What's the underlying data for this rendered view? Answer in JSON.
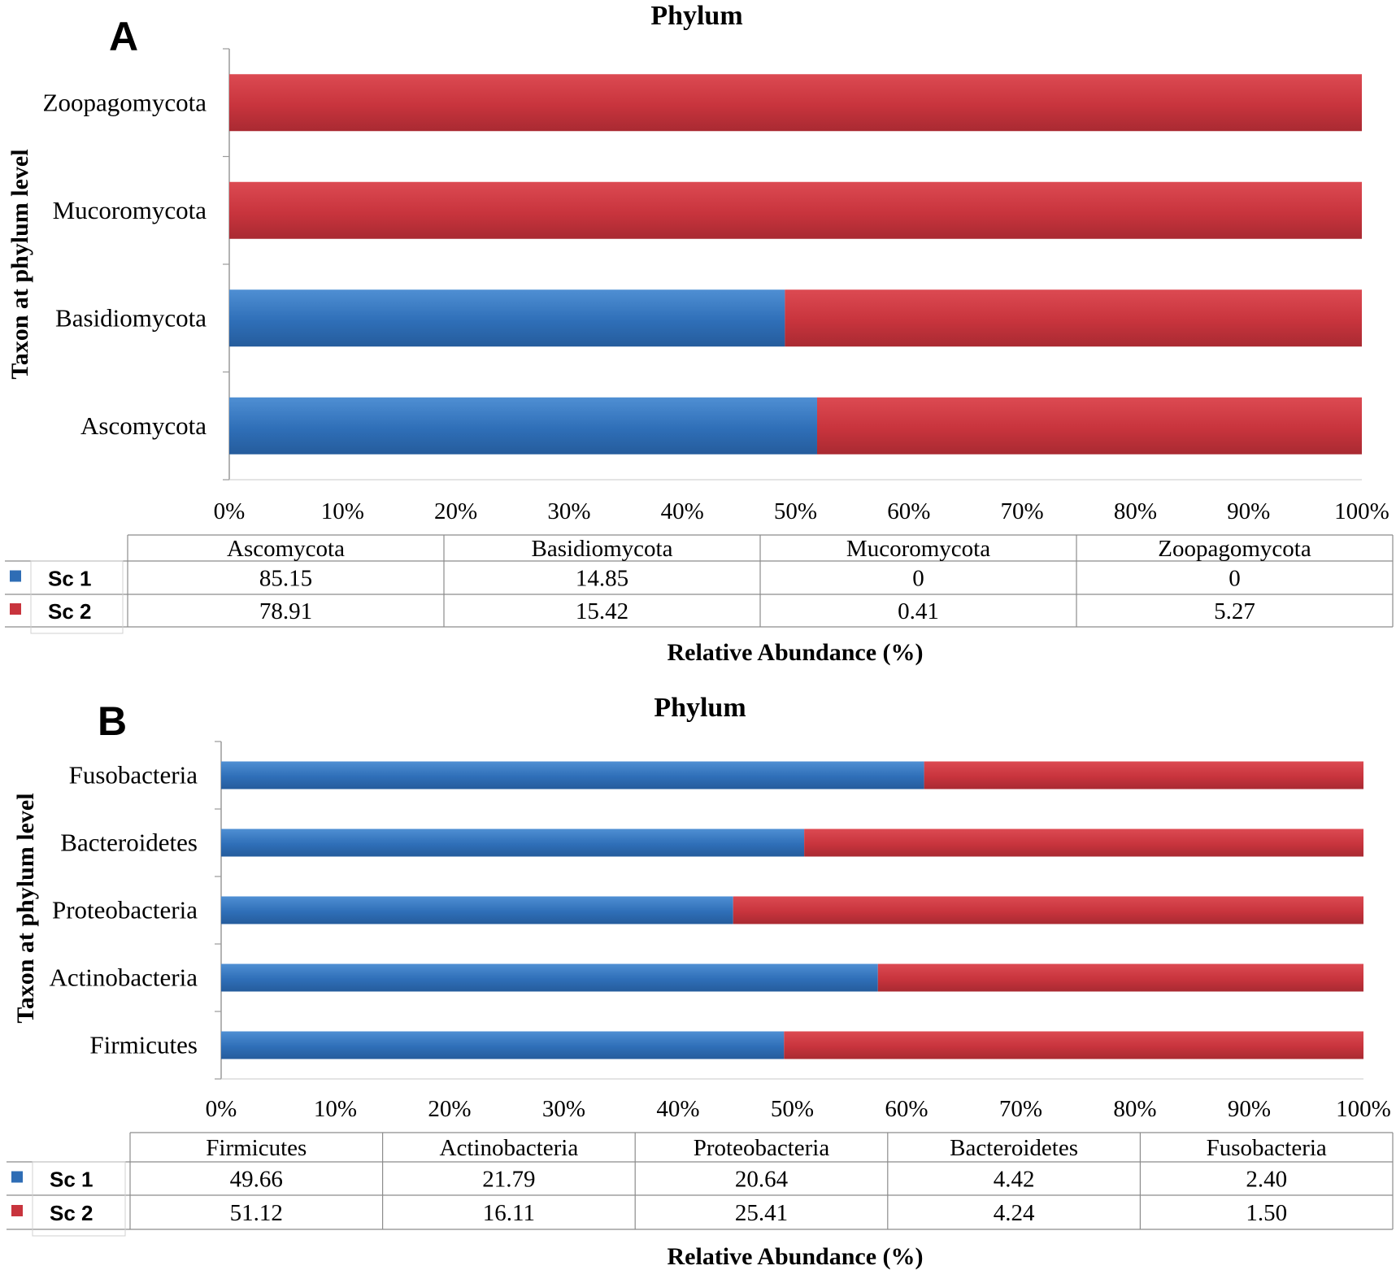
{
  "colors": {
    "sc1": "#2E6DB5",
    "sc1_light": "#4A88CC",
    "sc2": "#C8343D",
    "sc2_light": "#D8474F",
    "axis": "#888888",
    "grid_table": "#8c8c8c",
    "text": "#000000"
  },
  "chart_data": [
    {
      "type": "bar",
      "orientation": "horizontal",
      "stacked": "percent",
      "panel_label": "A",
      "title": "Phylum",
      "xlabel": "Relative Abundance (%)",
      "ylabel": "Taxon at phylum level",
      "xlim": [
        0,
        100
      ],
      "x_ticks": [
        "0%",
        "10%",
        "20%",
        "30%",
        "40%",
        "50%",
        "60%",
        "70%",
        "80%",
        "90%",
        "100%"
      ],
      "categories": [
        "Ascomycota",
        "Basidiomycota",
        "Mucoromycota",
        "Zoopagomycota"
      ],
      "series": [
        {
          "name": "Sc 1",
          "values": [
            85.15,
            14.85,
            0,
            0
          ],
          "labels": [
            "85.15",
            "14.85",
            "0",
            "0"
          ]
        },
        {
          "name": "Sc 2",
          "values": [
            78.91,
            15.42,
            0.41,
            5.27
          ],
          "labels": [
            "78.91",
            "15.42",
            "0.41",
            "5.27"
          ]
        }
      ],
      "legend": "bottom-left data table"
    },
    {
      "type": "bar",
      "orientation": "horizontal",
      "stacked": "percent",
      "panel_label": "B",
      "title": "Phylum",
      "xlabel": "Relative Abundance (%)",
      "ylabel": "Taxon at phylum level",
      "xlim": [
        0,
        100
      ],
      "x_ticks": [
        "0%",
        "10%",
        "20%",
        "30%",
        "40%",
        "50%",
        "60%",
        "70%",
        "80%",
        "90%",
        "100%"
      ],
      "categories": [
        "Firmicutes",
        "Actinobacteria",
        "Proteobacteria",
        "Bacteroidetes",
        "Fusobacteria"
      ],
      "series": [
        {
          "name": "Sc 1",
          "values": [
            49.66,
            21.79,
            20.64,
            4.42,
            2.4
          ],
          "labels": [
            "49.66",
            "21.79",
            "20.64",
            "4.42",
            "2.40"
          ]
        },
        {
          "name": "Sc 2",
          "values": [
            51.12,
            16.11,
            25.41,
            4.24,
            1.5
          ],
          "labels": [
            "51.12",
            "16.11",
            "25.41",
            "4.24",
            "1.50"
          ]
        }
      ],
      "legend": "bottom-left data table"
    }
  ]
}
